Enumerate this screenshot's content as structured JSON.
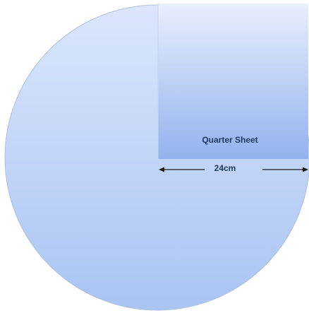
{
  "diagram": {
    "quarter_label": "Quarter Sheet",
    "dimension_label": "24cm"
  },
  "colors": {
    "circle_fill_top": "#dbe6fb",
    "circle_fill_bottom": "#a9c4f3",
    "circle_stroke": "#aebfd9",
    "quarter_fill_top": "#e8effc",
    "quarter_fill_bottom": "#93b2ee",
    "label_color": "#1f3a60",
    "arrow_color": "#1c1c1c"
  }
}
